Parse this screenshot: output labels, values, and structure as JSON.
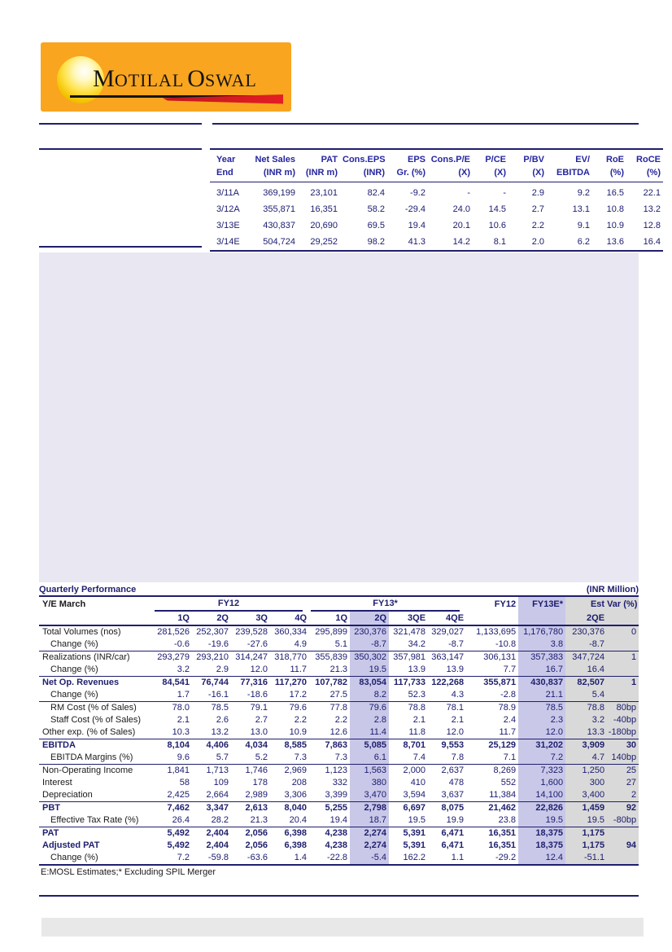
{
  "colors": {
    "navy": "#1f1f6e",
    "header-blue": "#2525a0",
    "num": "#1b1b6f",
    "label": "#1a1a1a",
    "lavender": "#c9c8e8",
    "grayhl": "#d9d9d9",
    "box-lavender": "#e8e7f2",
    "logo-orange": "#f9a51f",
    "logo-red": "#e31e24",
    "bar-gray": "#e8e8e8"
  },
  "logo": {
    "brand": "Motilal Oswal",
    "word1": "MOTILAL",
    "word2": "OSWAL"
  },
  "summary_table": {
    "headers": [
      {
        "top": "Year",
        "bottom": "End"
      },
      {
        "top": "Net Sales",
        "bottom": "(INR m)"
      },
      {
        "top": "PAT",
        "bottom": "(INR m)"
      },
      {
        "top": "Cons.EPS",
        "bottom": "(INR)"
      },
      {
        "top": "EPS",
        "bottom": "Gr. (%)"
      },
      {
        "top": "Cons.P/E",
        "bottom": "(X)"
      },
      {
        "top": "P/CE",
        "bottom": "(X)"
      },
      {
        "top": "P/BV",
        "bottom": "(X)"
      },
      {
        "top": "EV/",
        "bottom": "EBITDA"
      },
      {
        "top": "RoE",
        "bottom": "(%)"
      },
      {
        "top": "RoCE",
        "bottom": "(%)"
      }
    ],
    "rows": [
      [
        "3/11A",
        "369,199",
        "23,101",
        "82.4",
        "-9.2",
        "-",
        "-",
        "2.9",
        "9.2",
        "16.5",
        "22.1"
      ],
      [
        "3/12A",
        "355,871",
        "16,351",
        "58.2",
        "-29.4",
        "24.0",
        "14.5",
        "2.7",
        "13.1",
        "10.8",
        "13.2"
      ],
      [
        "3/13E",
        "430,837",
        "20,690",
        "69.5",
        "19.4",
        "20.1",
        "10.6",
        "2.2",
        "9.1",
        "10.9",
        "12.8"
      ],
      [
        "3/14E",
        "504,724",
        "29,252",
        "98.2",
        "41.3",
        "14.2",
        "8.1",
        "2.0",
        "6.2",
        "13.6",
        "16.4"
      ]
    ]
  },
  "quarterly": {
    "title": "Quarterly Performance",
    "unit": "(INR Million)",
    "head": {
      "ye_label": "Y/E March",
      "group_fy12": "FY12",
      "group_fy13": "FY13*",
      "annual_fy12": "FY12",
      "annual_fy13e": "FY13E*",
      "est": "Est",
      "var": "Var (%)",
      "sub_quarters": [
        "1Q",
        "2Q",
        "3Q",
        "4Q",
        "1Q",
        "2Q",
        "3QE",
        "4QE"
      ],
      "est_sub": "2QE"
    },
    "rows": [
      {
        "label": "Total Volumes (nos)",
        "bold": false,
        "indent": false,
        "sep": false,
        "last": false,
        "values": [
          "281,526",
          "252,307",
          "239,528",
          "360,334",
          "295,899",
          "230,376",
          "321,478",
          "329,027",
          "1,133,695",
          "1,176,780",
          "230,376",
          "0"
        ]
      },
      {
        "label": "Change (%)",
        "bold": false,
        "indent": true,
        "sep": true,
        "last": false,
        "values": [
          "-0.6",
          "-19.6",
          "-27.6",
          "4.9",
          "5.1",
          "-8.7",
          "34.2",
          "-8.7",
          "-10.8",
          "3.8",
          "-8.7",
          ""
        ]
      },
      {
        "label": "Realizations (INR/car)",
        "bold": false,
        "indent": false,
        "sep": false,
        "last": false,
        "values": [
          "293,279",
          "293,210",
          "314,247",
          "318,770",
          "355,839",
          "350,302",
          "357,981",
          "363,147",
          "306,131",
          "357,383",
          "347,724",
          "1"
        ]
      },
      {
        "label": "Change (%)",
        "bold": false,
        "indent": true,
        "sep": true,
        "last": false,
        "values": [
          "3.2",
          "2.9",
          "12.0",
          "11.7",
          "21.3",
          "19.5",
          "13.9",
          "13.9",
          "7.7",
          "16.7",
          "16.4",
          ""
        ]
      },
      {
        "label": "Net Op. Revenues",
        "bold": true,
        "indent": false,
        "sep": false,
        "last": false,
        "values": [
          "84,541",
          "76,744",
          "77,316",
          "117,270",
          "107,782",
          "83,054",
          "117,733",
          "122,268",
          "355,871",
          "430,837",
          "82,507",
          "1"
        ]
      },
      {
        "label": "Change (%)",
        "bold": false,
        "indent": true,
        "sep": true,
        "last": false,
        "values": [
          "1.7",
          "-16.1",
          "-18.6",
          "17.2",
          "27.5",
          "8.2",
          "52.3",
          "4.3",
          "-2.8",
          "21.1",
          "5.4",
          ""
        ]
      },
      {
        "label": "RM Cost (% of Sales)",
        "bold": false,
        "indent": true,
        "sep": false,
        "last": false,
        "values": [
          "78.0",
          "78.5",
          "79.1",
          "79.6",
          "77.8",
          "79.6",
          "78.8",
          "78.1",
          "78.9",
          "78.5",
          "78.8",
          "80bp"
        ]
      },
      {
        "label": "Staff Cost (% of Sales)",
        "bold": false,
        "indent": true,
        "sep": false,
        "last": false,
        "values": [
          "2.1",
          "2.6",
          "2.7",
          "2.2",
          "2.2",
          "2.8",
          "2.1",
          "2.1",
          "2.4",
          "2.3",
          "3.2",
          "-40bp"
        ]
      },
      {
        "label": "Other exp. (% of Sales)",
        "bold": false,
        "indent": false,
        "sep": true,
        "last": false,
        "values": [
          "10.3",
          "13.2",
          "13.0",
          "10.9",
          "12.6",
          "11.4",
          "11.8",
          "12.0",
          "11.7",
          "12.0",
          "13.3",
          "-180bp"
        ]
      },
      {
        "label": "EBITDA",
        "bold": true,
        "indent": false,
        "sep": false,
        "last": false,
        "values": [
          "8,104",
          "4,406",
          "4,034",
          "8,585",
          "7,863",
          "5,085",
          "8,701",
          "9,553",
          "25,129",
          "31,202",
          "3,909",
          "30"
        ]
      },
      {
        "label": "EBITDA Margins (%)",
        "bold": false,
        "indent": true,
        "sep": true,
        "last": false,
        "values": [
          "9.6",
          "5.7",
          "5.2",
          "7.3",
          "7.3",
          "6.1",
          "7.4",
          "7.8",
          "7.1",
          "7.2",
          "4.7",
          "140bp"
        ]
      },
      {
        "label": "Non-Operating Income",
        "bold": false,
        "indent": false,
        "sep": false,
        "last": false,
        "values": [
          "1,841",
          "1,713",
          "1,746",
          "2,969",
          "1,123",
          "1,563",
          "2,000",
          "2,637",
          "8,269",
          "7,323",
          "1,250",
          "25"
        ]
      },
      {
        "label": "Interest",
        "bold": false,
        "indent": false,
        "sep": false,
        "last": false,
        "values": [
          "58",
          "109",
          "178",
          "208",
          "332",
          "380",
          "410",
          "478",
          "552",
          "1,600",
          "300",
          "27"
        ]
      },
      {
        "label": "Depreciation",
        "bold": false,
        "indent": false,
        "sep": true,
        "last": false,
        "values": [
          "2,425",
          "2,664",
          "2,989",
          "3,306",
          "3,399",
          "3,470",
          "3,594",
          "3,637",
          "11,384",
          "14,100",
          "3,400",
          "2"
        ]
      },
      {
        "label": "PBT",
        "bold": true,
        "indent": false,
        "sep": false,
        "last": false,
        "values": [
          "7,462",
          "3,347",
          "2,613",
          "8,040",
          "5,255",
          "2,798",
          "6,697",
          "8,075",
          "21,462",
          "22,826",
          "1,459",
          "92"
        ]
      },
      {
        "label": "Effective Tax Rate (%)",
        "bold": false,
        "indent": true,
        "sep": true,
        "last": false,
        "values": [
          "26.4",
          "28.2",
          "21.3",
          "20.4",
          "19.4",
          "18.7",
          "19.5",
          "19.9",
          "23.8",
          "19.5",
          "19.5",
          "-80bp"
        ]
      },
      {
        "label": "PAT",
        "bold": true,
        "indent": false,
        "sep": false,
        "last": false,
        "values": [
          "5,492",
          "2,404",
          "2,056",
          "6,398",
          "4,238",
          "2,274",
          "5,391",
          "6,471",
          "16,351",
          "18,375",
          "1,175",
          ""
        ]
      },
      {
        "label": "Adjusted PAT",
        "bold": true,
        "indent": false,
        "sep": false,
        "last": false,
        "values": [
          "5,492",
          "2,404",
          "2,056",
          "6,398",
          "4,238",
          "2,274",
          "5,391",
          "6,471",
          "16,351",
          "18,375",
          "1,175",
          "94"
        ]
      },
      {
        "label": "Change (%)",
        "bold": false,
        "indent": true,
        "sep": false,
        "last": true,
        "values": [
          "7.2",
          "-59.8",
          "-63.6",
          "1.4",
          "-22.8",
          "-5.4",
          "162.2",
          "1.1",
          "-29.2",
          "12.4",
          "-51.1",
          ""
        ]
      }
    ],
    "footnote": "E:MOSL Estimates;* Excluding SPIL Merger"
  }
}
